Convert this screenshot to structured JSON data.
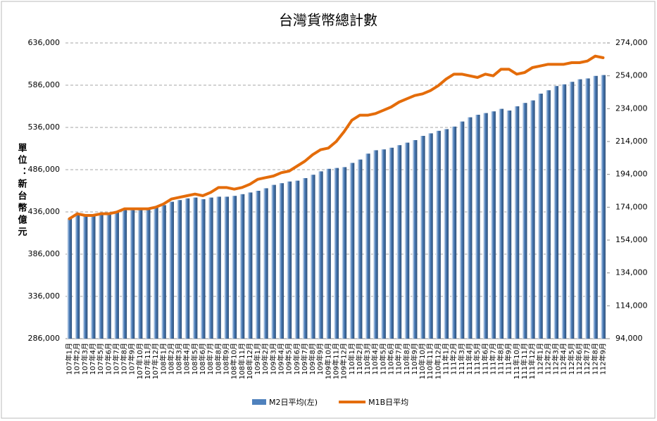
{
  "chart_data": {
    "type": "bar-line",
    "title": "台灣貨幣總計數",
    "y_label": "單位：新台幣億元",
    "categories": [
      "107年1月",
      "107年2月",
      "107年3月",
      "107年4月",
      "107年5月",
      "107年6月",
      "107年7月",
      "107年8月",
      "107年9月",
      "107年10月",
      "107年11月",
      "107年12月",
      "108年1月",
      "108年2月",
      "108年3月",
      "108年4月",
      "108年5月",
      "108年6月",
      "108年7月",
      "108年8月",
      "108年9月",
      "108年10月",
      "108年11月",
      "108年12月",
      "109年1月",
      "109年2月",
      "109年3月",
      "109年4月",
      "109年5月",
      "109年6月",
      "109年7月",
      "109年8月",
      "109年9月",
      "109年10月",
      "109年11月",
      "109年12月",
      "110年1月",
      "110年2月",
      "110年3月",
      "110年4月",
      "110年5月",
      "110年6月",
      "110年7月",
      "110年8月",
      "110年9月",
      "110年10月",
      "110年11月",
      "110年12月",
      "111年1月",
      "111年2月",
      "111年3月",
      "111年4月",
      "111年5月",
      "111年6月",
      "111年7月",
      "111年8月",
      "111年9月",
      "111年10月",
      "111年11月",
      "111年12月",
      "112年1月",
      "112年2月",
      "112年3月",
      "112年4月",
      "112年5月",
      "112年6月",
      "112年7月",
      "112年8月",
      "112年9月"
    ],
    "series": [
      {
        "name": "M2日平均(左)",
        "color": "#4f81bd",
        "kind": "bar",
        "axis": "y",
        "values": [
          428000,
          434000,
          433000,
          433000,
          435000,
          434000,
          437000,
          440000,
          440000,
          439000,
          441000,
          442000,
          444000,
          448000,
          450000,
          452000,
          453000,
          451000,
          453000,
          454000,
          454000,
          455000,
          457000,
          459000,
          461000,
          464000,
          468000,
          470000,
          472000,
          473000,
          476000,
          480000,
          484000,
          487000,
          488000,
          489000,
          494000,
          498000,
          505000,
          509000,
          510000,
          512000,
          515000,
          518000,
          521000,
          526000,
          529000,
          532000,
          534000,
          537000,
          543000,
          548000,
          551000,
          553000,
          555000,
          558000,
          556000,
          561000,
          565000,
          568000,
          576000,
          580000,
          585000,
          587000,
          590000,
          593000,
          594000,
          597000,
          598000
        ]
      },
      {
        "name": "M1B日平均",
        "color": "#e46c0a",
        "kind": "line",
        "axis": "y2",
        "values": [
          167000,
          170000,
          169000,
          169000,
          170000,
          170000,
          171000,
          173000,
          173000,
          173000,
          173000,
          174000,
          176000,
          179000,
          180000,
          181000,
          182000,
          181000,
          183000,
          186000,
          186000,
          185000,
          186000,
          188000,
          191000,
          192000,
          193000,
          195000,
          196000,
          199000,
          202000,
          206000,
          209000,
          210000,
          214000,
          220000,
          227000,
          230000,
          230000,
          231000,
          233000,
          235000,
          238000,
          240000,
          242000,
          243000,
          245000,
          248000,
          252000,
          255000,
          255000,
          254000,
          253000,
          255000,
          254000,
          258000,
          258000,
          255000,
          256000,
          259000,
          260000,
          261000,
          261000,
          261000,
          262000,
          262000,
          263000,
          266000,
          265000
        ]
      }
    ],
    "ylim": [
      286000,
      636000
    ],
    "yticks": [
      {
        "value": 286000,
        "label": "286,000"
      },
      {
        "value": 336000,
        "label": "336,000"
      },
      {
        "value": 386000,
        "label": "386,000"
      },
      {
        "value": 436000,
        "label": "436,000"
      },
      {
        "value": 486000,
        "label": "486,000"
      },
      {
        "value": 536000,
        "label": "536,000"
      },
      {
        "value": 586000,
        "label": "586,000"
      },
      {
        "value": 636000,
        "label": "636,000"
      }
    ],
    "y2lim": [
      94000,
      274000
    ],
    "y2ticks": [
      {
        "value": 94000,
        "label": "94,000"
      },
      {
        "value": 114000,
        "label": "114,000"
      },
      {
        "value": 134000,
        "label": "134,000"
      },
      {
        "value": 154000,
        "label": "154,000"
      },
      {
        "value": 174000,
        "label": "174,000"
      },
      {
        "value": 194000,
        "label": "194,000"
      },
      {
        "value": 214000,
        "label": "214,000"
      },
      {
        "value": 234000,
        "label": "234,000"
      },
      {
        "value": 254000,
        "label": "254,000"
      },
      {
        "value": 274000,
        "label": "274,000"
      }
    ],
    "grid": true
  }
}
